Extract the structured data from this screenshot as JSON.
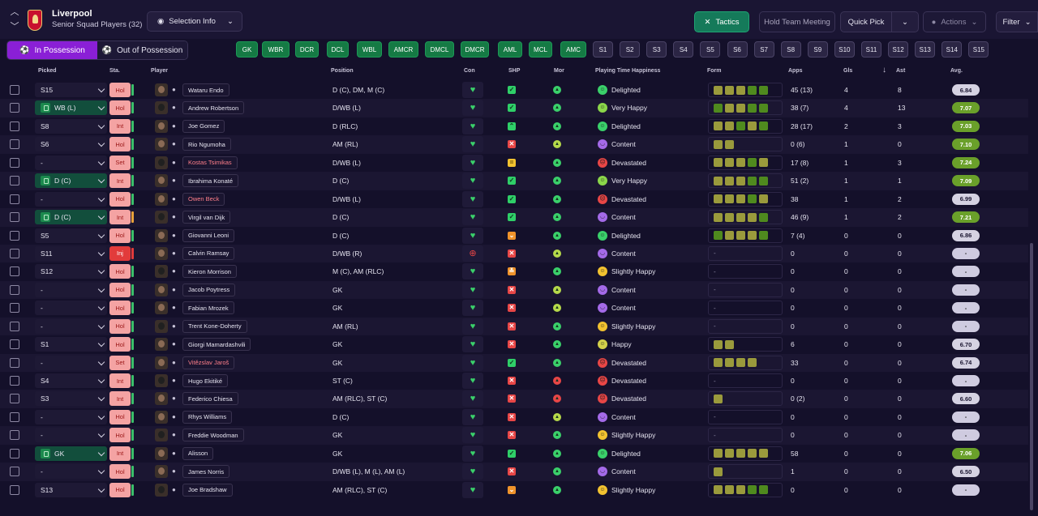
{
  "header": {
    "club": "Liverpool",
    "squad": "Senior Squad Players (32)",
    "selection_info": "Selection Info",
    "tactics": "Tactics",
    "hold_meeting": "Hold Team Meeting",
    "quick_pick": "Quick Pick",
    "actions": "Actions",
    "filter": "Filter"
  },
  "possession": {
    "in": "In Possession",
    "out": "Out of Possession"
  },
  "positions": [
    "GK",
    "WBR",
    "DCR",
    "DCL",
    "WBL",
    "AMCR",
    "DMCL",
    "DMCR",
    "AML",
    "MCL",
    "AMC"
  ],
  "slots": [
    "S1",
    "S2",
    "S3",
    "S4",
    "S5",
    "S6",
    "S7",
    "S8",
    "S9",
    "S10",
    "S11",
    "S12",
    "S13",
    "S14",
    "S15"
  ],
  "columns": {
    "picked": "Picked",
    "sta": "Sta.",
    "player": "Player",
    "position": "Position",
    "con": "Con",
    "shp": "SHP",
    "mor": "Mor",
    "pth": "Playing Time Happiness",
    "form": "Form",
    "apps": "Apps",
    "gls": "Gls",
    "ast": "Ast",
    "avg": "Avg."
  },
  "colors": {
    "accent_purple": "#8a1fd6",
    "accent_green": "#157a5a",
    "form_green": "#4f8a1e",
    "form_olive": "#9a9a3c"
  },
  "rows": [
    {
      "picked": "S15",
      "hl": false,
      "sta": "Hol",
      "bar": "#3bbf6a",
      "name": "Wataru Endo",
      "red": false,
      "position": "D (C), DM, M (C)",
      "con": "g",
      "shp": "ok",
      "mor": "g",
      "hap": "Delighted",
      "form": [
        "o",
        "o",
        "o",
        "g",
        "g"
      ],
      "apps": "45 (13)",
      "gls": "4",
      "ast": "8",
      "avg": "6.84"
    },
    {
      "picked": "WB (L)",
      "hl": true,
      "sta": "Hol",
      "bar": "#3bbf6a",
      "name": "Andrew Robertson",
      "red": false,
      "position": "D/WB (L)",
      "con": "g",
      "shp": "ok",
      "mor": "g",
      "hap": "Very Happy",
      "form": [
        "g",
        "o",
        "o",
        "g",
        "g"
      ],
      "apps": "38 (7)",
      "gls": "4",
      "ast": "13",
      "avg": "7.07"
    },
    {
      "picked": "S8",
      "hl": false,
      "sta": "Int",
      "bar": "#3bbf6a",
      "name": "Joe Gomez",
      "red": false,
      "position": "D (RLC)",
      "con": "g",
      "shp": "up",
      "mor": "g",
      "hap": "Delighted",
      "form": [
        "o",
        "o",
        "g",
        "o",
        "g"
      ],
      "apps": "28 (17)",
      "gls": "2",
      "ast": "3",
      "avg": "7.03"
    },
    {
      "picked": "S6",
      "hl": false,
      "sta": "Hol",
      "bar": "#3bbf6a",
      "name": "Rio Ngumoha",
      "red": false,
      "position": "AM (RL)",
      "con": "g",
      "shp": "x",
      "mor": "y",
      "hap": "Content",
      "form": [
        "o",
        "o"
      ],
      "apps": "0 (6)",
      "gls": "1",
      "ast": "0",
      "avg": "7.10"
    },
    {
      "picked": "-",
      "hl": false,
      "sta": "Set",
      "bar": "#3bbf6a",
      "name": "Kostas Tsimikas",
      "red": true,
      "position": "D/WB (L)",
      "con": "g",
      "shp": "eq",
      "mor": "g",
      "hap": "Devastated",
      "form": [
        "o",
        "o",
        "o",
        "g",
        "o"
      ],
      "apps": "17 (8)",
      "gls": "1",
      "ast": "3",
      "avg": "7.24"
    },
    {
      "picked": "D (C)",
      "hl": true,
      "sta": "Int",
      "bar": "#3bbf6a",
      "name": "Ibrahima Konaté",
      "red": false,
      "position": "D (C)",
      "con": "g",
      "shp": "ok",
      "mor": "g",
      "hap": "Very Happy",
      "form": [
        "o",
        "o",
        "o",
        "g",
        "g"
      ],
      "apps": "51 (2)",
      "gls": "1",
      "ast": "1",
      "avg": "7.09"
    },
    {
      "picked": "-",
      "hl": false,
      "sta": "Hol",
      "bar": "#3bbf6a",
      "name": "Owen Beck",
      "red": true,
      "position": "D/WB (L)",
      "con": "g",
      "shp": "ok",
      "mor": "g",
      "hap": "Devastated",
      "form": [
        "o",
        "o",
        "o",
        "g",
        "o"
      ],
      "apps": "38",
      "gls": "1",
      "ast": "2",
      "avg": "6.99"
    },
    {
      "picked": "D (C)",
      "hl": true,
      "sta": "Int",
      "bar": "#e9a23b",
      "name": "Virgil van Dijk",
      "red": false,
      "position": "D (C)",
      "con": "g",
      "shp": "ok",
      "mor": "g",
      "hap": "Content",
      "form": [
        "o",
        "o",
        "o",
        "o",
        "g"
      ],
      "apps": "46 (9)",
      "gls": "1",
      "ast": "2",
      "avg": "7.21"
    },
    {
      "picked": "S5",
      "hl": false,
      "sta": "Hol",
      "bar": "#3bbf6a",
      "name": "Giovanni Leoni",
      "red": false,
      "position": "D (C)",
      "con": "g",
      "shp": "dn",
      "mor": "g",
      "hap": "Delighted",
      "form": [
        "g",
        "o",
        "o",
        "o",
        "g"
      ],
      "apps": "7 (4)",
      "gls": "0",
      "ast": "0",
      "avg": "6.86"
    },
    {
      "picked": "S11",
      "hl": false,
      "sta": "Inj",
      "bar": "#e23b3b",
      "name": "Calvin Ramsay",
      "red": false,
      "position": "D/WB (R)",
      "con": "r",
      "shp": "x",
      "mor": "y",
      "hap": "Content",
      "form": [],
      "apps": "0",
      "gls": "0",
      "ast": "0",
      "avg": "-"
    },
    {
      "picked": "S12",
      "hl": false,
      "sta": "Hol",
      "bar": "#3bbf6a",
      "name": "Kieron Morrison",
      "red": false,
      "position": "M (C), AM (RLC)",
      "con": "g",
      "shp": "dd",
      "mor": "g",
      "hap": "Slightly Happy",
      "form": [],
      "apps": "0",
      "gls": "0",
      "ast": "0",
      "avg": "-"
    },
    {
      "picked": "-",
      "hl": false,
      "sta": "Hol",
      "bar": "#3bbf6a",
      "name": "Jacob Poytress",
      "red": false,
      "position": "GK",
      "con": "g",
      "shp": "x",
      "mor": "y",
      "hap": "Content",
      "form": [],
      "apps": "0",
      "gls": "0",
      "ast": "0",
      "avg": "-"
    },
    {
      "picked": "-",
      "hl": false,
      "sta": "Hol",
      "bar": "#3bbf6a",
      "name": "Fabian Mrozek",
      "red": false,
      "position": "GK",
      "con": "g",
      "shp": "x",
      "mor": "y",
      "hap": "Content",
      "form": [],
      "apps": "0",
      "gls": "0",
      "ast": "0",
      "avg": "-"
    },
    {
      "picked": "-",
      "hl": false,
      "sta": "Hol",
      "bar": "#3bbf6a",
      "name": "Trent Kone-Doherty",
      "red": false,
      "position": "AM (RL)",
      "con": "g",
      "shp": "x",
      "mor": "g",
      "hap": "Slightly Happy",
      "form": [],
      "apps": "0",
      "gls": "0",
      "ast": "0",
      "avg": "-"
    },
    {
      "picked": "S1",
      "hl": false,
      "sta": "Hol",
      "bar": "#3bbf6a",
      "name": "Giorgi Mamardashvili",
      "red": false,
      "position": "GK",
      "con": "g",
      "shp": "x",
      "mor": "g",
      "hap": "Happy",
      "form": [
        "o",
        "o"
      ],
      "apps": "6",
      "gls": "0",
      "ast": "0",
      "avg": "6.70"
    },
    {
      "picked": "-",
      "hl": false,
      "sta": "Set",
      "bar": "#3bbf6a",
      "name": "Vitězslav Jaroš",
      "red": true,
      "position": "GK",
      "con": "g",
      "shp": "ok",
      "mor": "g",
      "hap": "Devastated",
      "form": [
        "o",
        "o",
        "o",
        "o"
      ],
      "apps": "33",
      "gls": "0",
      "ast": "0",
      "avg": "6.74"
    },
    {
      "picked": "S4",
      "hl": false,
      "sta": "Int",
      "bar": "#3bbf6a",
      "name": "Hugo Ekitiké",
      "red": false,
      "position": "ST (C)",
      "con": "g",
      "shp": "x",
      "mor": "r",
      "hap": "Devastated",
      "form": [],
      "apps": "0",
      "gls": "0",
      "ast": "0",
      "avg": "-"
    },
    {
      "picked": "S3",
      "hl": false,
      "sta": "Int",
      "bar": "#3bbf6a",
      "name": "Federico Chiesa",
      "red": false,
      "position": "AM (RLC), ST (C)",
      "con": "g",
      "shp": "x",
      "mor": "r",
      "hap": "Devastated",
      "form": [
        "o"
      ],
      "apps": "0 (2)",
      "gls": "0",
      "ast": "0",
      "avg": "6.60"
    },
    {
      "picked": "-",
      "hl": false,
      "sta": "Hol",
      "bar": "#3bbf6a",
      "name": "Rhys Williams",
      "red": false,
      "position": "D (C)",
      "con": "g",
      "shp": "x",
      "mor": "y",
      "hap": "Content",
      "form": [],
      "apps": "0",
      "gls": "0",
      "ast": "0",
      "avg": "-"
    },
    {
      "picked": "-",
      "hl": false,
      "sta": "Hol",
      "bar": "#3bbf6a",
      "name": "Freddie Woodman",
      "red": false,
      "position": "GK",
      "con": "g",
      "shp": "x",
      "mor": "g",
      "hap": "Slightly Happy",
      "form": [],
      "apps": "0",
      "gls": "0",
      "ast": "0",
      "avg": "-"
    },
    {
      "picked": "GK",
      "hl": true,
      "sta": "Int",
      "bar": "#3bbf6a",
      "name": "Alisson",
      "red": false,
      "position": "GK",
      "con": "g",
      "shp": "ok",
      "mor": "g",
      "hap": "Delighted",
      "form": [
        "o",
        "o",
        "o",
        "o",
        "o"
      ],
      "apps": "58",
      "gls": "0",
      "ast": "0",
      "avg": "7.06"
    },
    {
      "picked": "-",
      "hl": false,
      "sta": "Hol",
      "bar": "#3bbf6a",
      "name": "James Norris",
      "red": false,
      "position": "D/WB (L), M (L), AM (L)",
      "con": "g",
      "shp": "x",
      "mor": "g",
      "hap": "Content",
      "form": [
        "o"
      ],
      "apps": "1",
      "gls": "0",
      "ast": "0",
      "avg": "6.50"
    },
    {
      "picked": "S13",
      "hl": false,
      "sta": "Hol",
      "bar": "#3bbf6a",
      "name": "Joe Bradshaw",
      "red": false,
      "position": "AM (RLC), ST (C)",
      "con": "g",
      "shp": "dn",
      "mor": "g",
      "hap": "Slightly Happy",
      "form": [
        "o",
        "o",
        "o",
        "g",
        "g"
      ],
      "apps": "0",
      "gls": "0",
      "ast": "0",
      "avg": "-"
    }
  ]
}
